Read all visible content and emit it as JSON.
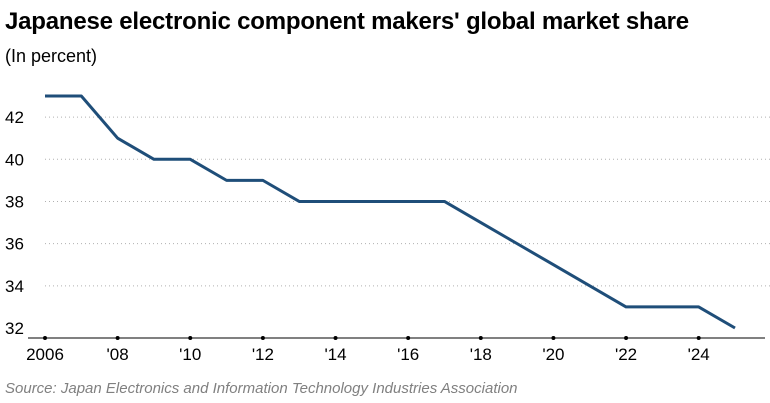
{
  "title": "Japanese electronic component makers' global market share",
  "subtitle": "(In percent)",
  "source": "Source: Japan Electronics and Information Technology Industries Association",
  "chart_data": {
    "type": "line",
    "title": "Japanese electronic component makers' global market share",
    "subtitle": "(In percent)",
    "xlabel": "",
    "ylabel": "",
    "x": [
      2006,
      2007,
      2008,
      2009,
      2010,
      2011,
      2012,
      2013,
      2014,
      2015,
      2016,
      2017,
      2018,
      2019,
      2020,
      2021,
      2022,
      2023,
      2024,
      2025
    ],
    "series": [
      {
        "values": [
          43,
          43,
          41,
          40,
          40,
          39,
          39,
          38,
          38,
          38,
          38,
          38,
          37,
          36,
          35,
          34,
          33,
          33,
          33,
          32
        ]
      }
    ],
    "xlim": [
      2006,
      2025
    ],
    "ylim": [
      32,
      43
    ],
    "x_ticks": [
      2006,
      2008,
      2010,
      2012,
      2014,
      2016,
      2018,
      2020,
      2022,
      2024
    ],
    "x_tick_labels": [
      "2006",
      "'08",
      "'10",
      "'12",
      "'14",
      "'16",
      "'18",
      "'20",
      "'22",
      "'24"
    ],
    "y_ticks": [
      32,
      34,
      36,
      38,
      40,
      42
    ],
    "y_tick_labels": [
      "32",
      "34",
      "36",
      "38",
      "40",
      "42"
    ],
    "grid": "horizontal dotted",
    "legend": "none",
    "colors": {
      "line": "#1f4e79",
      "grid": "#b0b0b0",
      "axis": "#000000"
    }
  }
}
